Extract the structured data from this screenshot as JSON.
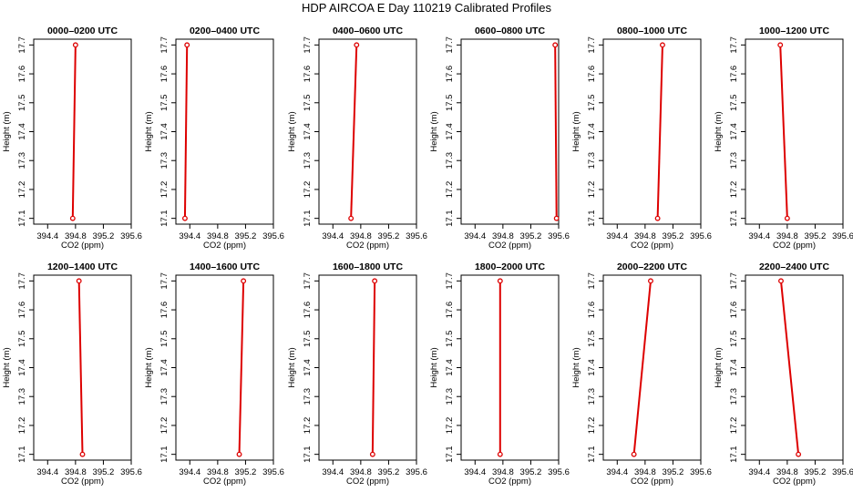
{
  "title": "HDP AIRCOA E  Day 110219  Calibrated Profiles",
  "colors": {
    "line": "#dd0000",
    "point_fill": "#ffffff",
    "frame": "#000000"
  },
  "chart_data": {
    "type": "line",
    "xlabel": "CO2 (ppm)",
    "ylabel": "Height (m)",
    "xlim": [
      394.2,
      395.6
    ],
    "ylim": [
      17.08,
      17.72
    ],
    "x_ticks": [
      "394.4",
      "394.8",
      "395.2",
      "395.6"
    ],
    "x_tick_values": [
      394.4,
      394.8,
      395.2,
      395.6
    ],
    "y_ticks": [
      "17.1",
      "17.2",
      "17.3",
      "17.4",
      "17.5",
      "17.6",
      "17.7"
    ],
    "y_tick_values": [
      17.1,
      17.2,
      17.3,
      17.4,
      17.5,
      17.6,
      17.7
    ],
    "panels": [
      {
        "title": "0000–0200 UTC",
        "x": [
          394.76,
          394.8
        ],
        "y": [
          17.1,
          17.7
        ]
      },
      {
        "title": "0200–0400 UTC",
        "x": [
          394.33,
          394.36
        ],
        "y": [
          17.1,
          17.7
        ]
      },
      {
        "title": "0400–0600 UTC",
        "x": [
          394.66,
          394.74
        ],
        "y": [
          17.1,
          17.7
        ]
      },
      {
        "title": "0600–0800 UTC",
        "x": [
          395.57,
          395.55
        ],
        "y": [
          17.1,
          17.7
        ]
      },
      {
        "title": "0800–1000 UTC",
        "x": [
          394.98,
          395.05
        ],
        "y": [
          17.1,
          17.7
        ]
      },
      {
        "title": "1000–1200 UTC",
        "x": [
          394.8,
          394.7
        ],
        "y": [
          17.1,
          17.7
        ]
      },
      {
        "title": "1200–1400 UTC",
        "x": [
          394.9,
          394.85
        ],
        "y": [
          17.1,
          17.7
        ]
      },
      {
        "title": "1400–1600 UTC",
        "x": [
          395.11,
          395.17
        ],
        "y": [
          17.1,
          17.7
        ]
      },
      {
        "title": "1600–1800 UTC",
        "x": [
          394.97,
          395.0
        ],
        "y": [
          17.1,
          17.7
        ]
      },
      {
        "title": "1800–2000 UTC",
        "x": [
          394.76,
          394.76
        ],
        "y": [
          17.1,
          17.7
        ]
      },
      {
        "title": "2000–2200 UTC",
        "x": [
          394.64,
          394.88
        ],
        "y": [
          17.1,
          17.7
        ]
      },
      {
        "title": "2200–2400 UTC",
        "x": [
          394.96,
          394.71
        ],
        "y": [
          17.1,
          17.7
        ]
      }
    ]
  }
}
